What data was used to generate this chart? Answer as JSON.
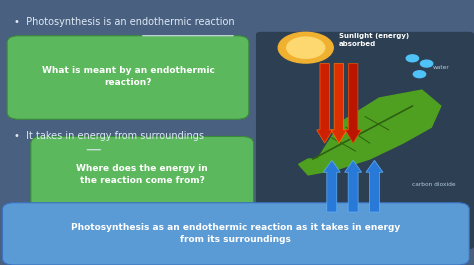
{
  "bg_color": "#4a6080",
  "fig_width": 4.74,
  "fig_height": 2.65,
  "dpi": 100,
  "bullet1_text": "•  Photosynthesis is an endothermic reaction",
  "bullet2_text": "•  It takes in energy from surroundings",
  "green_box1_text": "What is meant by an endothermic\nreaction?",
  "green_box2_text": "Where does the energy in\nthe reaction come from?",
  "blue_box_text": "Photosynthesis as an endothermic reaction as it takes in energy\nfrom its surroundings",
  "green_color": "#5cb85c",
  "blue_box_color": "#5b9bd5",
  "text_white": "#ffffff",
  "text_light": "#ddeaf5",
  "right_panel_color": "#2d3f52",
  "sunlight_label": "Sunlight (energy)\nabsorbed",
  "water_label": "water",
  "co2_label": "carbon dioxide"
}
